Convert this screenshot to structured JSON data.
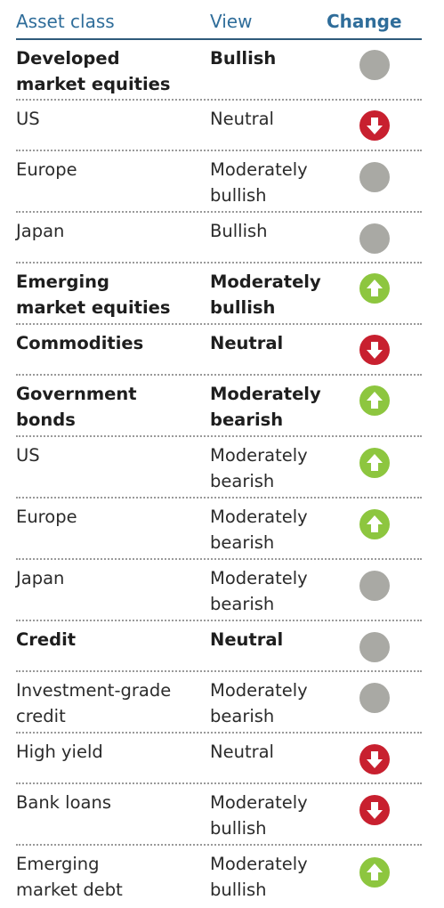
{
  "header": {
    "asset_class": "Asset class",
    "view": "View",
    "change": "Change"
  },
  "rows": [
    {
      "asset": "Developed\nmarket equities",
      "view": "Bullish",
      "change": "neutral",
      "bold": true
    },
    {
      "asset": "US",
      "view": "Neutral",
      "change": "down",
      "bold": false
    },
    {
      "asset": "Europe",
      "view": "Moderately\nbullish",
      "change": "neutral",
      "bold": false
    },
    {
      "asset": "Japan",
      "view": "Bullish",
      "change": "neutral",
      "bold": false
    },
    {
      "asset": "Emerging\nmarket equities",
      "view": "Moderately\nbullish",
      "change": "up",
      "bold": true
    },
    {
      "asset": "Commodities",
      "view": "Neutral",
      "change": "down",
      "bold": true
    },
    {
      "asset": "Government\nbonds",
      "view": "Moderately\nbearish",
      "change": "up",
      "bold": true
    },
    {
      "asset": "US",
      "view": "Moderately\nbearish",
      "change": "up",
      "bold": false
    },
    {
      "asset": "Europe",
      "view": "Moderately\nbearish",
      "change": "up",
      "bold": false
    },
    {
      "asset": "Japan",
      "view": "Moderately\nbearish",
      "change": "neutral",
      "bold": false
    },
    {
      "asset": "Credit",
      "view": "Neutral",
      "change": "neutral",
      "bold": true
    },
    {
      "asset": "Investment-grade\ncredit",
      "view": "Moderately\nbearish",
      "change": "neutral",
      "bold": false
    },
    {
      "asset": "High yield",
      "view": "Neutral",
      "change": "down",
      "bold": false
    },
    {
      "asset": "Bank loans",
      "view": "Moderately\nbullish",
      "change": "down",
      "bold": false
    },
    {
      "asset": "Emerging\nmarket debt",
      "view": "Moderately\nbullish",
      "change": "up",
      "bold": false
    }
  ],
  "colors": {
    "neutral": "#a9a9a4",
    "up": "#8dc63f",
    "down": "#c8202f",
    "header_rule": "#2f5a7a"
  }
}
